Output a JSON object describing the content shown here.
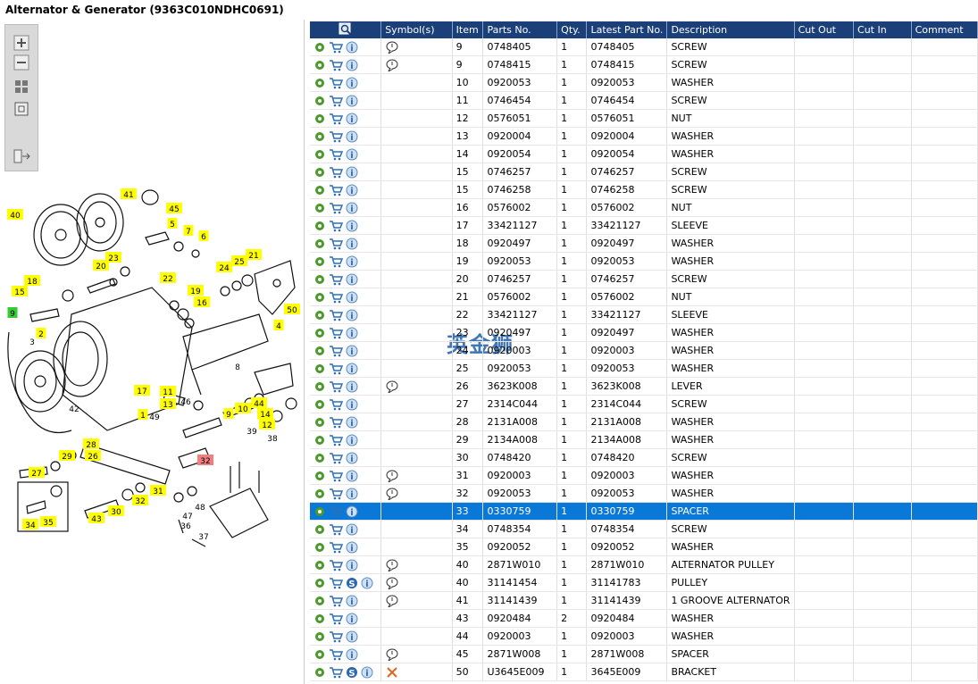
{
  "header": {
    "title": "Alternator & Generator (9363C010NDHC0691)"
  },
  "diagram": {
    "watermark": "英金狮",
    "callouts": [
      {
        "label": "40",
        "color": "#ffff00"
      },
      {
        "label": "41",
        "color": "#ffff00"
      },
      {
        "label": "45",
        "color": "#ffff00"
      },
      {
        "label": "5",
        "color": "#ffff00"
      },
      {
        "label": "7",
        "color": "#ffff00"
      },
      {
        "label": "6",
        "color": "#ffff00"
      },
      {
        "label": "23",
        "color": "#ffff00"
      },
      {
        "label": "20",
        "color": "#ffff00"
      },
      {
        "label": "18",
        "color": "#ffff00"
      },
      {
        "label": "15",
        "color": "#ffff00"
      },
      {
        "label": "22",
        "color": "#ffff00"
      },
      {
        "label": "19",
        "color": "#ffff00"
      },
      {
        "label": "16",
        "color": "#ffff00"
      },
      {
        "label": "24",
        "color": "#ffff00"
      },
      {
        "label": "25",
        "color": "#ffff00"
      },
      {
        "label": "21",
        "color": "#ffff00"
      },
      {
        "label": "50",
        "color": "#ffff00"
      },
      {
        "label": "9",
        "color": "#33cc33"
      },
      {
        "label": "2",
        "color": "#ffff00"
      },
      {
        "label": "4",
        "color": "#ffff00"
      },
      {
        "label": "3",
        "color": "#ffffff"
      },
      {
        "label": "8",
        "color": "#ffffff"
      },
      {
        "label": "17",
        "color": "#ffff00"
      },
      {
        "label": "11",
        "color": "#ffff00"
      },
      {
        "label": "13",
        "color": "#ffff00"
      },
      {
        "label": "10",
        "color": "#ffff00"
      },
      {
        "label": "9",
        "color": "#ffff00"
      },
      {
        "label": "44",
        "color": "#ffff00"
      },
      {
        "label": "14",
        "color": "#ffff00"
      },
      {
        "label": "12",
        "color": "#ffff00"
      },
      {
        "label": "46",
        "color": "#ffffff"
      },
      {
        "label": "42",
        "color": "#ffffff"
      },
      {
        "label": "1",
        "color": "#ffff00"
      },
      {
        "label": "49",
        "color": "#ffffff"
      },
      {
        "label": "39",
        "color": "#ffffff"
      },
      {
        "label": "38",
        "color": "#ffffff"
      },
      {
        "label": "28",
        "color": "#ffff00"
      },
      {
        "label": "29",
        "color": "#ffff00"
      },
      {
        "label": "26",
        "color": "#ffff00"
      },
      {
        "label": "27",
        "color": "#ffff00"
      },
      {
        "label": "32",
        "color": "#f08080"
      },
      {
        "label": "31",
        "color": "#ffff00"
      },
      {
        "label": "32",
        "color": "#ffff00"
      },
      {
        "label": "30",
        "color": "#ffff00"
      },
      {
        "label": "43",
        "color": "#ffff00"
      },
      {
        "label": "34",
        "color": "#ffff00"
      },
      {
        "label": "35",
        "color": "#ffff00"
      },
      {
        "label": "47",
        "color": "#ffffff"
      },
      {
        "label": "48",
        "color": "#ffffff"
      },
      {
        "label": "36",
        "color": "#ffffff"
      },
      {
        "label": "37",
        "color": "#ffffff"
      }
    ]
  },
  "table": {
    "columns": [
      "Symbol(s)",
      "Item",
      "Parts No.",
      "Qty.",
      "Latest Part No.",
      "Description",
      "Cut Out",
      "Cut In",
      "Comment"
    ],
    "rows": [
      {
        "item": "9",
        "part": "0748405",
        "qty": "1",
        "latest": "0748405",
        "desc": "SCREW",
        "symbol": "note"
      },
      {
        "item": "9",
        "part": "0748415",
        "qty": "1",
        "latest": "0748415",
        "desc": "SCREW",
        "symbol": "note"
      },
      {
        "item": "10",
        "part": "0920053",
        "qty": "1",
        "latest": "0920053",
        "desc": "WASHER"
      },
      {
        "item": "11",
        "part": "0746454",
        "qty": "1",
        "latest": "0746454",
        "desc": "SCREW"
      },
      {
        "item": "12",
        "part": "0576051",
        "qty": "1",
        "latest": "0576051",
        "desc": "NUT"
      },
      {
        "item": "13",
        "part": "0920004",
        "qty": "1",
        "latest": "0920004",
        "desc": "WASHER"
      },
      {
        "item": "14",
        "part": "0920054",
        "qty": "1",
        "latest": "0920054",
        "desc": "WASHER"
      },
      {
        "item": "15",
        "part": "0746257",
        "qty": "1",
        "latest": "0746257",
        "desc": "SCREW"
      },
      {
        "item": "15",
        "part": "0746258",
        "qty": "1",
        "latest": "0746258",
        "desc": "SCREW"
      },
      {
        "item": "16",
        "part": "0576002",
        "qty": "1",
        "latest": "0576002",
        "desc": "NUT"
      },
      {
        "item": "17",
        "part": "33421127",
        "qty": "1",
        "latest": "33421127",
        "desc": "SLEEVE"
      },
      {
        "item": "18",
        "part": "0920497",
        "qty": "1",
        "latest": "0920497",
        "desc": "WASHER"
      },
      {
        "item": "19",
        "part": "0920053",
        "qty": "1",
        "latest": "0920053",
        "desc": "WASHER"
      },
      {
        "item": "20",
        "part": "0746257",
        "qty": "1",
        "latest": "0746257",
        "desc": "SCREW"
      },
      {
        "item": "21",
        "part": "0576002",
        "qty": "1",
        "latest": "0576002",
        "desc": "NUT"
      },
      {
        "item": "22",
        "part": "33421127",
        "qty": "1",
        "latest": "33421127",
        "desc": "SLEEVE"
      },
      {
        "item": "23",
        "part": "0920497",
        "qty": "1",
        "latest": "0920497",
        "desc": "WASHER"
      },
      {
        "item": "24",
        "part": "0920003",
        "qty": "1",
        "latest": "0920003",
        "desc": "WASHER"
      },
      {
        "item": "25",
        "part": "0920053",
        "qty": "1",
        "latest": "0920053",
        "desc": "WASHER"
      },
      {
        "item": "26",
        "part": "3623K008",
        "qty": "1",
        "latest": "3623K008",
        "desc": "LEVER",
        "symbol": "note"
      },
      {
        "item": "27",
        "part": "2314C044",
        "qty": "1",
        "latest": "2314C044",
        "desc": "SCREW"
      },
      {
        "item": "28",
        "part": "2131A008",
        "qty": "1",
        "latest": "2131A008",
        "desc": "WASHER"
      },
      {
        "item": "29",
        "part": "2134A008",
        "qty": "1",
        "latest": "2134A008",
        "desc": "WASHER"
      },
      {
        "item": "30",
        "part": "0748420",
        "qty": "1",
        "latest": "0748420",
        "desc": "SCREW"
      },
      {
        "item": "31",
        "part": "0920003",
        "qty": "1",
        "latest": "0920003",
        "desc": "WASHER",
        "symbol": "note"
      },
      {
        "item": "32",
        "part": "0920053",
        "qty": "1",
        "latest": "0920053",
        "desc": "WASHER",
        "symbol": "note"
      },
      {
        "item": "33",
        "part": "0330759",
        "qty": "1",
        "latest": "0330759",
        "desc": "SPACER",
        "selected": true
      },
      {
        "item": "34",
        "part": "0748354",
        "qty": "1",
        "latest": "0748354",
        "desc": "SCREW"
      },
      {
        "item": "35",
        "part": "0920052",
        "qty": "1",
        "latest": "0920052",
        "desc": "WASHER"
      },
      {
        "item": "40",
        "part": "2871W010",
        "qty": "1",
        "latest": "2871W010",
        "desc": "ALTERNATOR PULLEY",
        "symbol": "note"
      },
      {
        "item": "40",
        "part": "31141454",
        "qty": "1",
        "latest": "31141783",
        "desc": "PULLEY",
        "symbol": "note",
        "s": true
      },
      {
        "item": "41",
        "part": "31141439",
        "qty": "1",
        "latest": "31141439",
        "desc": "1 GROOVE ALTERNATOR",
        "symbol": "note"
      },
      {
        "item": "43",
        "part": "0920484",
        "qty": "2",
        "latest": "0920484",
        "desc": "WASHER"
      },
      {
        "item": "44",
        "part": "0920003",
        "qty": "1",
        "latest": "0920003",
        "desc": "WASHER"
      },
      {
        "item": "45",
        "part": "2871W008",
        "qty": "1",
        "latest": "2871W008",
        "desc": "SPACER",
        "symbol": "note"
      },
      {
        "item": "50",
        "part": "U3645E009",
        "qty": "1",
        "latest": "3645E009",
        "desc": "BRACKET",
        "symbol": "remove",
        "s": true
      }
    ]
  }
}
